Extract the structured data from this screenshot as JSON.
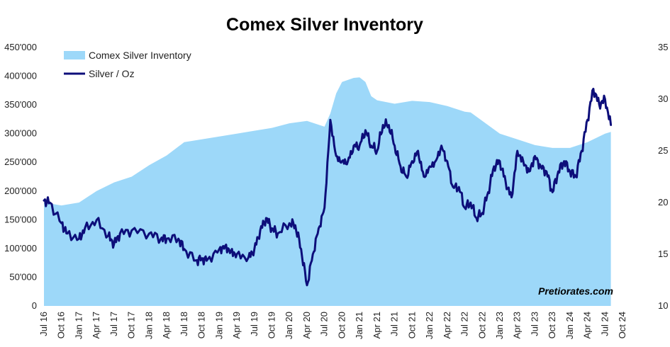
{
  "chart_data": {
    "type": "area",
    "title": "Comex Silver Inventory",
    "x_tick_labels": [
      "Jul 16",
      "Oct 16",
      "Jan 17",
      "Apr 17",
      "Jul 17",
      "Oct 17",
      "Jan 18",
      "Apr 18",
      "Jul 18",
      "Oct 18",
      "Jan 19",
      "Apr 19",
      "Jul 19",
      "Oct 19",
      "Jan 20",
      "Apr 20",
      "Jul 20",
      "Oct 20",
      "Jan 21",
      "Apr 21",
      "Jul 21",
      "Oct 21",
      "Jan 22",
      "Apr 22",
      "Jul 22",
      "Oct 22",
      "Jan 23",
      "Apr 23",
      "Jul 23",
      "Oct 23",
      "Jan 24",
      "Apr 24",
      "Jul 24",
      "Oct 24"
    ],
    "y_left": {
      "min": 0,
      "max": 450000,
      "ticks": [
        "0",
        "50'000",
        "100'000",
        "150'000",
        "200'000",
        "250'000",
        "300'000",
        "350'000",
        "400'000",
        "450'000"
      ]
    },
    "y_right": {
      "min": 10,
      "max": 35,
      "ticks": [
        "10",
        "15",
        "20",
        "25",
        "30",
        "35"
      ]
    },
    "legend_placement": "top-left",
    "grid": false,
    "watermark": "Pretiorates.com",
    "series": [
      {
        "name": "Comex Silver Inventory",
        "type": "area",
        "axis": "left",
        "color": "#9dd8f9",
        "x": [
          "Jul 16",
          "Oct 16",
          "Jan 17",
          "Apr 17",
          "Jul 17",
          "Oct 17",
          "Jan 18",
          "Apr 18",
          "Jul 18",
          "Oct 18",
          "Jan 19",
          "Apr 19",
          "Jul 19",
          "Oct 19",
          "Jan 20",
          "Apr 20",
          "Jul 20",
          "Aug 20",
          "Sep 20",
          "Oct 20",
          "Dec 20",
          "Jan 21",
          "Feb 21",
          "Mar 21",
          "Apr 21",
          "Jul 21",
          "Oct 21",
          "Jan 22",
          "Apr 22",
          "Jul 22",
          "Aug 22",
          "Oct 22",
          "Jan 23",
          "Apr 23",
          "Jul 23",
          "Oct 23",
          "Jan 24",
          "Apr 24",
          "Jul 24",
          "Aug 24"
        ],
        "values": [
          180000,
          175000,
          180000,
          200000,
          215000,
          225000,
          245000,
          262000,
          285000,
          290000,
          295000,
          300000,
          305000,
          310000,
          318000,
          322000,
          312000,
          335000,
          370000,
          390000,
          397000,
          398000,
          390000,
          365000,
          358000,
          352000,
          357000,
          355000,
          348000,
          338000,
          337000,
          322000,
          300000,
          290000,
          280000,
          275000,
          275000,
          285000,
          300000,
          303000
        ]
      },
      {
        "name": "Silver / Oz",
        "type": "line",
        "axis": "right",
        "color": "#0d0e7a",
        "x": [
          "Jul 16",
          "Aug 16",
          "Oct 16",
          "Nov 16",
          "Jan 17",
          "Feb 17",
          "Apr 17",
          "Jun 17",
          "Jul 17",
          "Aug 17",
          "Oct 17",
          "Jan 18",
          "Mar 18",
          "Apr 18",
          "Jun 18",
          "Jul 18",
          "Sep 18",
          "Oct 18",
          "Nov 18",
          "Jan 19",
          "Feb 19",
          "Mar 19",
          "Apr 19",
          "Jun 19",
          "Jul 19",
          "Aug 19",
          "Sep 19",
          "Oct 19",
          "Nov 19",
          "Jan 20",
          "Feb 20",
          "Mar 20",
          "Apr 20",
          "May 20",
          "Jun 20",
          "Jul 20",
          "Aug 20",
          "Sep 20",
          "Oct 20",
          "Nov 20",
          "Dec 20",
          "Jan 21",
          "Feb 21",
          "Mar 21",
          "Apr 21",
          "May 21",
          "Jun 21",
          "Jul 21",
          "Aug 21",
          "Sep 21",
          "Oct 21",
          "Nov 21",
          "Dec 21",
          "Jan 22",
          "Feb 22",
          "Mar 22",
          "Apr 22",
          "May 22",
          "Jun 22",
          "Jul 22",
          "Aug 22",
          "Sep 22",
          "Oct 22",
          "Nov 22",
          "Dec 22",
          "Jan 23",
          "Feb 23",
          "Mar 23",
          "Apr 23",
          "May 23",
          "Jun 23",
          "Jul 23",
          "Aug 23",
          "Sep 23",
          "Oct 23",
          "Nov 23",
          "Dec 23",
          "Jan 24",
          "Feb 24",
          "Mar 24",
          "Apr 24",
          "May 24",
          "Jun 24",
          "Jul 24",
          "Aug 24"
        ],
        "values": [
          20.2,
          20.0,
          18.0,
          17.0,
          16.5,
          17.5,
          18.3,
          16.8,
          16.0,
          17.0,
          17.3,
          17.0,
          16.5,
          16.5,
          16.5,
          15.5,
          14.4,
          14.6,
          14.5,
          15.5,
          15.8,
          15.3,
          15.0,
          14.7,
          15.5,
          17.3,
          18.5,
          17.5,
          17.0,
          18.0,
          17.8,
          15.5,
          12.0,
          15.0,
          17.5,
          19.5,
          28.0,
          24.5,
          24.0,
          24.0,
          25.5,
          25.5,
          27.0,
          25.5,
          25.0,
          27.5,
          27.5,
          25.5,
          23.5,
          22.5,
          24.0,
          25.0,
          22.5,
          23.5,
          24.0,
          25.5,
          24.0,
          21.5,
          21.5,
          19.5,
          20.0,
          18.5,
          19.0,
          21.0,
          23.5,
          24.0,
          22.0,
          20.5,
          25.0,
          24.0,
          23.0,
          24.5,
          23.5,
          23.0,
          21.0,
          23.0,
          24.0,
          23.0,
          22.5,
          25.0,
          28.0,
          31.0,
          29.5,
          30.0,
          27.5
        ]
      }
    ]
  }
}
